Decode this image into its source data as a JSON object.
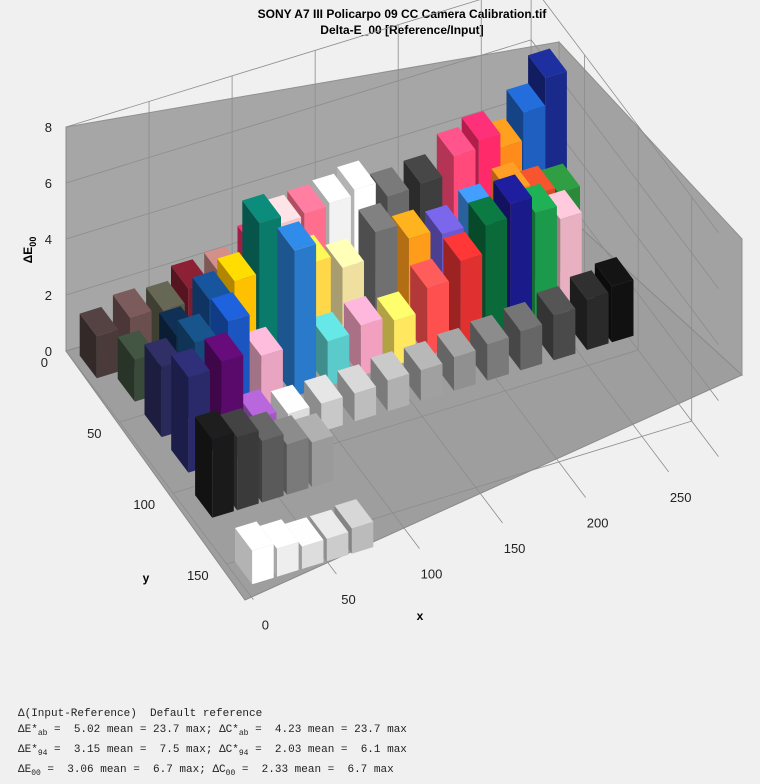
{
  "header": {
    "title_line1": "SONY A7 III Policarpo 09 CC Camera Calibration.tif",
    "title_line2": "Delta-E_00   [Reference/Input]"
  },
  "axes": {
    "zlabel_main": "ΔE",
    "zlabel_sub": "00",
    "xlabel": "x",
    "ylabel": "y",
    "z_ticks": [
      "0",
      "2",
      "4",
      "6",
      "8"
    ],
    "x_ticks": [
      "0",
      "50",
      "100",
      "150",
      "200",
      "250"
    ],
    "y_ticks": [
      "0",
      "50",
      "100",
      "150"
    ]
  },
  "stats": {
    "header": "Δ(Input-Reference)  Default reference",
    "rows": [
      {
        "e_sym": "ΔE*",
        "e_sub": "ab",
        "e_mean": "5.02",
        "e_max": "23.7",
        "c_sym": "ΔC*",
        "c_sub": "ab",
        "c_mean": "4.23",
        "c_max": "23.7"
      },
      {
        "e_sym": "ΔE*",
        "e_sub": "94",
        "e_mean": "3.15",
        "e_max": "7.5",
        "c_sym": "ΔC*",
        "c_sub": "94",
        "c_mean": "2.03",
        "c_max": "6.1"
      },
      {
        "e_sym": "ΔE",
        "e_sub": "00",
        "e_mean": "3.06",
        "e_max": "6.7",
        "c_sym": "ΔC",
        "c_sub": "00",
        "c_mean": "2.33",
        "c_max": "6.7"
      }
    ]
  },
  "chart_data": {
    "type": "bar3d",
    "xlabel": "x",
    "ylabel": "y",
    "zlabel": "ΔE 00",
    "xlim": [
      0,
      280
    ],
    "ylim": [
      0,
      175
    ],
    "zlim": [
      0,
      8
    ],
    "grid": true,
    "colors": {
      "wall": "#a6a6a6",
      "floor": "#9e9e9e",
      "grid": "#8c8c8c",
      "figure_bg": "#f0f0f0"
    },
    "bars": [
      {
        "x": 5,
        "y": 5,
        "z": 1.5,
        "color": "#4a3a3a"
      },
      {
        "x": 25,
        "y": 5,
        "z": 1.8,
        "color": "#6b4f4f"
      },
      {
        "x": 45,
        "y": 5,
        "z": 1.7,
        "color": "#5a5a4a"
      },
      {
        "x": 60,
        "y": 5,
        "z": 2.2,
        "color": "#7a1d2e"
      },
      {
        "x": 80,
        "y": 5,
        "z": 2.3,
        "color": "#b87c79"
      },
      {
        "x": 100,
        "y": 5,
        "z": 2.9,
        "color": "#e42b63"
      },
      {
        "x": 115,
        "y": 5,
        "z": 3.5,
        "color": "#f3c6c9"
      },
      {
        "x": 130,
        "y": 5,
        "z": 3.6,
        "color": "#ff6e8c"
      },
      {
        "x": 145,
        "y": 5,
        "z": 3.7,
        "color": "#f2f2f2"
      },
      {
        "x": 160,
        "y": 5,
        "z": 3.9,
        "color": "#ffffff"
      },
      {
        "x": 180,
        "y": 5,
        "z": 3.3,
        "color": "#6a6a6a"
      },
      {
        "x": 200,
        "y": 5,
        "z": 3.4,
        "color": "#3e3e3e"
      },
      {
        "x": 220,
        "y": 5,
        "z": 4.0,
        "color": "#ff4a7a"
      },
      {
        "x": 235,
        "y": 5,
        "z": 4.3,
        "color": "#ff2a6a"
      },
      {
        "x": 248,
        "y": 5,
        "z": 3.8,
        "color": "#ff8c1a"
      },
      {
        "x": 262,
        "y": 5,
        "z": 4.8,
        "color": "#1e5fbf"
      },
      {
        "x": 275,
        "y": 5,
        "z": 5.8,
        "color": "#1a2a8a"
      },
      {
        "x": 15,
        "y": 25,
        "z": 1.5,
        "color": "#3a4a3a"
      },
      {
        "x": 40,
        "y": 25,
        "z": 1.9,
        "color": "#0f2a4a"
      },
      {
        "x": 60,
        "y": 25,
        "z": 2.8,
        "color": "#154a8a"
      },
      {
        "x": 75,
        "y": 25,
        "z": 3.2,
        "color": "#ffc000"
      },
      {
        "x": 90,
        "y": 25,
        "z": 5.0,
        "color": "#0a7a6a"
      },
      {
        "x": 105,
        "y": 25,
        "z": 3.6,
        "color": "#ffe14a"
      },
      {
        "x": 120,
        "y": 25,
        "z": 3.0,
        "color": "#ffd84a"
      },
      {
        "x": 140,
        "y": 25,
        "z": 2.5,
        "color": "#f0e0a0"
      },
      {
        "x": 160,
        "y": 25,
        "z": 3.4,
        "color": "#707070"
      },
      {
        "x": 180,
        "y": 25,
        "z": 2.8,
        "color": "#ff9c1a"
      },
      {
        "x": 200,
        "y": 25,
        "z": 2.6,
        "color": "#6a5acd"
      },
      {
        "x": 220,
        "y": 25,
        "z": 3.0,
        "color": "#3a8ae0"
      },
      {
        "x": 240,
        "y": 25,
        "z": 3.4,
        "color": "#ff8a20"
      },
      {
        "x": 255,
        "y": 25,
        "z": 3.0,
        "color": "#d64a2a"
      },
      {
        "x": 270,
        "y": 25,
        "z": 2.8,
        "color": "#2a8a3a"
      },
      {
        "x": 15,
        "y": 50,
        "z": 2.5,
        "color": "#2a2a5a"
      },
      {
        "x": 35,
        "y": 50,
        "z": 3.0,
        "color": "#154a7a"
      },
      {
        "x": 55,
        "y": 50,
        "z": 3.4,
        "color": "#1a55c0"
      },
      {
        "x": 75,
        "y": 50,
        "z": 1.8,
        "color": "#e8a4c0"
      },
      {
        "x": 95,
        "y": 50,
        "z": 5.2,
        "color": "#2a7acc"
      },
      {
        "x": 115,
        "y": 50,
        "z": 1.6,
        "color": "#5acaca"
      },
      {
        "x": 135,
        "y": 50,
        "z": 1.8,
        "color": "#f2a0c0"
      },
      {
        "x": 155,
        "y": 50,
        "z": 1.6,
        "color": "#ffe860"
      },
      {
        "x": 175,
        "y": 50,
        "z": 2.4,
        "color": "#ff5050"
      },
      {
        "x": 195,
        "y": 50,
        "z": 3.0,
        "color": "#e03030"
      },
      {
        "x": 210,
        "y": 50,
        "z": 4.0,
        "color": "#0a6a3a"
      },
      {
        "x": 225,
        "y": 50,
        "z": 4.5,
        "color": "#1a1a8a"
      },
      {
        "x": 240,
        "y": 50,
        "z": 3.9,
        "color": "#1a9a4a"
      },
      {
        "x": 255,
        "y": 50,
        "z": 3.4,
        "color": "#e8b0c0"
      },
      {
        "x": 15,
        "y": 75,
        "z": 3.4,
        "color": "#2a2a6a"
      },
      {
        "x": 35,
        "y": 75,
        "z": 3.6,
        "color": "#5a0a6a"
      },
      {
        "x": 55,
        "y": 75,
        "z": 1.2,
        "color": "#a05ac0"
      },
      {
        "x": 75,
        "y": 75,
        "z": 1.0,
        "color": "#dddddd"
      },
      {
        "x": 95,
        "y": 75,
        "z": 1.0,
        "color": "#c8c8c8"
      },
      {
        "x": 115,
        "y": 75,
        "z": 1.0,
        "color": "#bdbdbd"
      },
      {
        "x": 135,
        "y": 75,
        "z": 1.1,
        "color": "#b0b0b0"
      },
      {
        "x": 155,
        "y": 75,
        "z": 1.1,
        "color": "#a0a0a0"
      },
      {
        "x": 175,
        "y": 75,
        "z": 1.2,
        "color": "#909090"
      },
      {
        "x": 195,
        "y": 75,
        "z": 1.3,
        "color": "#7a7a7a"
      },
      {
        "x": 215,
        "y": 75,
        "z": 1.4,
        "color": "#666666"
      },
      {
        "x": 235,
        "y": 75,
        "z": 1.6,
        "color": "#4a4a4a"
      },
      {
        "x": 255,
        "y": 75,
        "z": 1.8,
        "color": "#2a2a2a"
      },
      {
        "x": 270,
        "y": 75,
        "z": 2.0,
        "color": "#111111"
      },
      {
        "x": 10,
        "y": 105,
        "z": 2.8,
        "color": "#1a1a1a"
      },
      {
        "x": 25,
        "y": 105,
        "z": 2.6,
        "color": "#3a3a3a"
      },
      {
        "x": 40,
        "y": 105,
        "z": 2.2,
        "color": "#5a5a5a"
      },
      {
        "x": 55,
        "y": 105,
        "z": 1.8,
        "color": "#7a7a7a"
      },
      {
        "x": 70,
        "y": 105,
        "z": 1.6,
        "color": "#9a9a9a"
      },
      {
        "x": 5,
        "y": 150,
        "z": 1.2,
        "color": "#ffffff"
      },
      {
        "x": 20,
        "y": 150,
        "z": 1.0,
        "color": "#eeeeee"
      },
      {
        "x": 35,
        "y": 150,
        "z": 0.8,
        "color": "#dddddd"
      },
      {
        "x": 50,
        "y": 150,
        "z": 0.8,
        "color": "#cccccc"
      },
      {
        "x": 65,
        "y": 150,
        "z": 0.9,
        "color": "#bbbbbb"
      }
    ]
  }
}
